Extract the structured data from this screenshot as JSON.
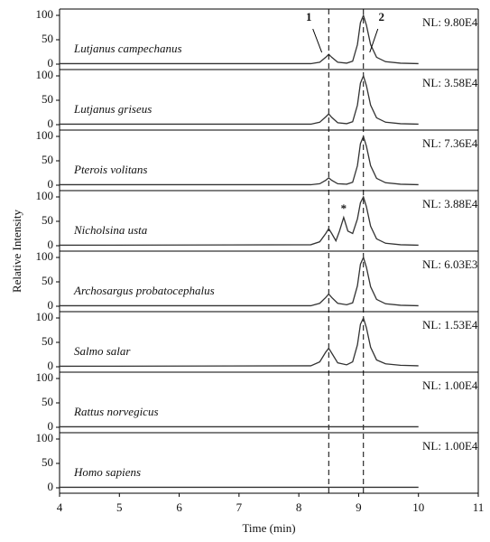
{
  "chart_data": [
    {
      "type": "line",
      "name": "Lutjanus campechanus",
      "note": "NL: 9.80E4",
      "ylabel": "Relative Intensity",
      "markers": [
        {
          "label": "1",
          "x": 8.5
        },
        {
          "label": "2",
          "x": 9.08
        }
      ],
      "x": [
        4,
        8.2,
        8.35,
        8.45,
        8.5,
        8.55,
        8.65,
        8.8,
        8.9,
        8.98,
        9.03,
        9.08,
        9.13,
        9.2,
        9.3,
        9.45,
        9.7,
        10
      ],
      "values": [
        1,
        1,
        4,
        14,
        20,
        14,
        4,
        2,
        6,
        40,
        85,
        100,
        80,
        40,
        14,
        5,
        2,
        1
      ],
      "xlim": [
        4,
        11
      ],
      "ylim": [
        0,
        100
      ],
      "yticks": [
        0,
        50,
        100
      ],
      "color": "#333333"
    },
    {
      "type": "line",
      "name": "Lutjanus griseus",
      "note": "NL: 3.58E4",
      "x": [
        4,
        8.2,
        8.35,
        8.45,
        8.5,
        8.55,
        8.65,
        8.8,
        8.9,
        8.98,
        9.03,
        9.08,
        9.13,
        9.2,
        9.3,
        9.45,
        9.7,
        10
      ],
      "values": [
        1,
        1,
        5,
        16,
        22,
        15,
        4,
        2,
        6,
        40,
        85,
        100,
        80,
        40,
        14,
        5,
        2,
        1
      ],
      "xlim": [
        4,
        11
      ],
      "ylim": [
        0,
        100
      ],
      "yticks": [
        0,
        50,
        100
      ],
      "color": "#333333"
    },
    {
      "type": "line",
      "name": "Pterois volitans",
      "note": "NL: 7.36E4",
      "x": [
        4,
        8.2,
        8.35,
        8.45,
        8.5,
        8.55,
        8.65,
        8.8,
        8.9,
        8.98,
        9.03,
        9.08,
        9.13,
        9.2,
        9.3,
        9.45,
        9.7,
        10
      ],
      "values": [
        1,
        1,
        3,
        10,
        15,
        10,
        3,
        2,
        6,
        40,
        85,
        100,
        80,
        40,
        14,
        5,
        2,
        1
      ],
      "xlim": [
        4,
        11
      ],
      "ylim": [
        0,
        100
      ],
      "yticks": [
        0,
        50,
        100
      ],
      "color": "#333333"
    },
    {
      "type": "line",
      "name": "Nicholsina usta",
      "note": "NL: 3.88E4",
      "annotations": [
        {
          "text": "*",
          "x": 8.75
        }
      ],
      "x": [
        4,
        8.2,
        8.35,
        8.45,
        8.5,
        8.55,
        8.62,
        8.68,
        8.75,
        8.82,
        8.9,
        8.98,
        9.03,
        9.08,
        9.13,
        9.2,
        9.3,
        9.45,
        9.7,
        10
      ],
      "values": [
        1,
        2,
        8,
        25,
        35,
        25,
        10,
        30,
        58,
        30,
        25,
        55,
        88,
        100,
        80,
        40,
        14,
        5,
        2,
        1
      ],
      "xlim": [
        4,
        11
      ],
      "ylim": [
        0,
        100
      ],
      "yticks": [
        0,
        50,
        100
      ],
      "color": "#333333"
    },
    {
      "type": "line",
      "name": "Archosargus probatocephalus",
      "note": "NL: 6.03E3",
      "x": [
        4,
        8.2,
        8.35,
        8.45,
        8.5,
        8.55,
        8.65,
        8.8,
        8.9,
        8.98,
        9.03,
        9.08,
        9.13,
        9.2,
        9.3,
        9.45,
        9.7,
        10
      ],
      "values": [
        1,
        1,
        6,
        18,
        25,
        18,
        6,
        3,
        7,
        42,
        86,
        100,
        80,
        40,
        14,
        5,
        2,
        1
      ],
      "xlim": [
        4,
        11
      ],
      "ylim": [
        0,
        100
      ],
      "yticks": [
        0,
        50,
        100
      ],
      "color": "#333333"
    },
    {
      "type": "line",
      "name": "Salmo salar",
      "note": "NL: 1.53E4",
      "x": [
        4,
        8.2,
        8.35,
        8.45,
        8.5,
        8.55,
        8.65,
        8.8,
        8.9,
        8.98,
        9.03,
        9.08,
        9.13,
        9.2,
        9.3,
        9.45,
        9.7,
        10
      ],
      "values": [
        1,
        2,
        10,
        30,
        38,
        28,
        8,
        4,
        10,
        45,
        87,
        100,
        80,
        40,
        14,
        6,
        3,
        2
      ],
      "xlim": [
        4,
        11
      ],
      "ylim": [
        0,
        100
      ],
      "yticks": [
        0,
        50,
        100
      ],
      "color": "#333333"
    },
    {
      "type": "line",
      "name": "Rattus norvegicus",
      "note": "NL: 1.00E4",
      "x": [
        4,
        10
      ],
      "values": [
        1,
        1
      ],
      "xlim": [
        4,
        11
      ],
      "ylim": [
        0,
        100
      ],
      "yticks": [
        0,
        50,
        100
      ],
      "color": "#333333"
    },
    {
      "type": "line",
      "name": "Homo sapiens",
      "note": "NL: 1.00E4",
      "xlabel": "Time (min)",
      "x": [
        4,
        10
      ],
      "values": [
        1,
        1
      ],
      "xlim": [
        4,
        11
      ],
      "xticks": [
        4,
        5,
        6,
        7,
        8,
        9,
        10,
        11
      ],
      "ylim": [
        0,
        100
      ],
      "yticks": [
        0,
        50,
        100
      ],
      "color": "#333333"
    }
  ]
}
